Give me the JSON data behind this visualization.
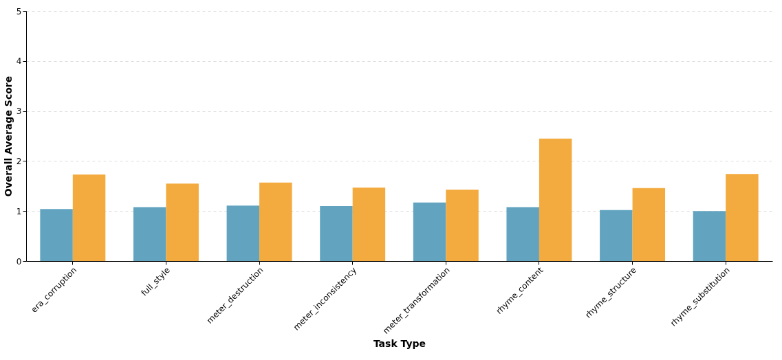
{
  "chart_data": {
    "type": "bar",
    "xlabel": "Task Type",
    "ylabel": "Overall Average Score",
    "categories": [
      "era_corruption",
      "full_style",
      "meter_destruction",
      "meter_inconsistency",
      "meter_transformation",
      "rhyme_content",
      "rhyme_structure",
      "rhyme_substitution"
    ],
    "series": [
      {
        "color": "#5a9fbd",
        "values": [
          1.04,
          1.08,
          1.11,
          1.1,
          1.17,
          1.08,
          1.02,
          1.0
        ]
      },
      {
        "color": "#f2a535",
        "values": [
          1.73,
          1.55,
          1.57,
          1.47,
          1.43,
          2.45,
          1.46,
          1.74
        ]
      }
    ],
    "ylim": [
      0,
      5
    ],
    "yticks": [
      0,
      1,
      2,
      3,
      4,
      5
    ],
    "grid": "y"
  }
}
